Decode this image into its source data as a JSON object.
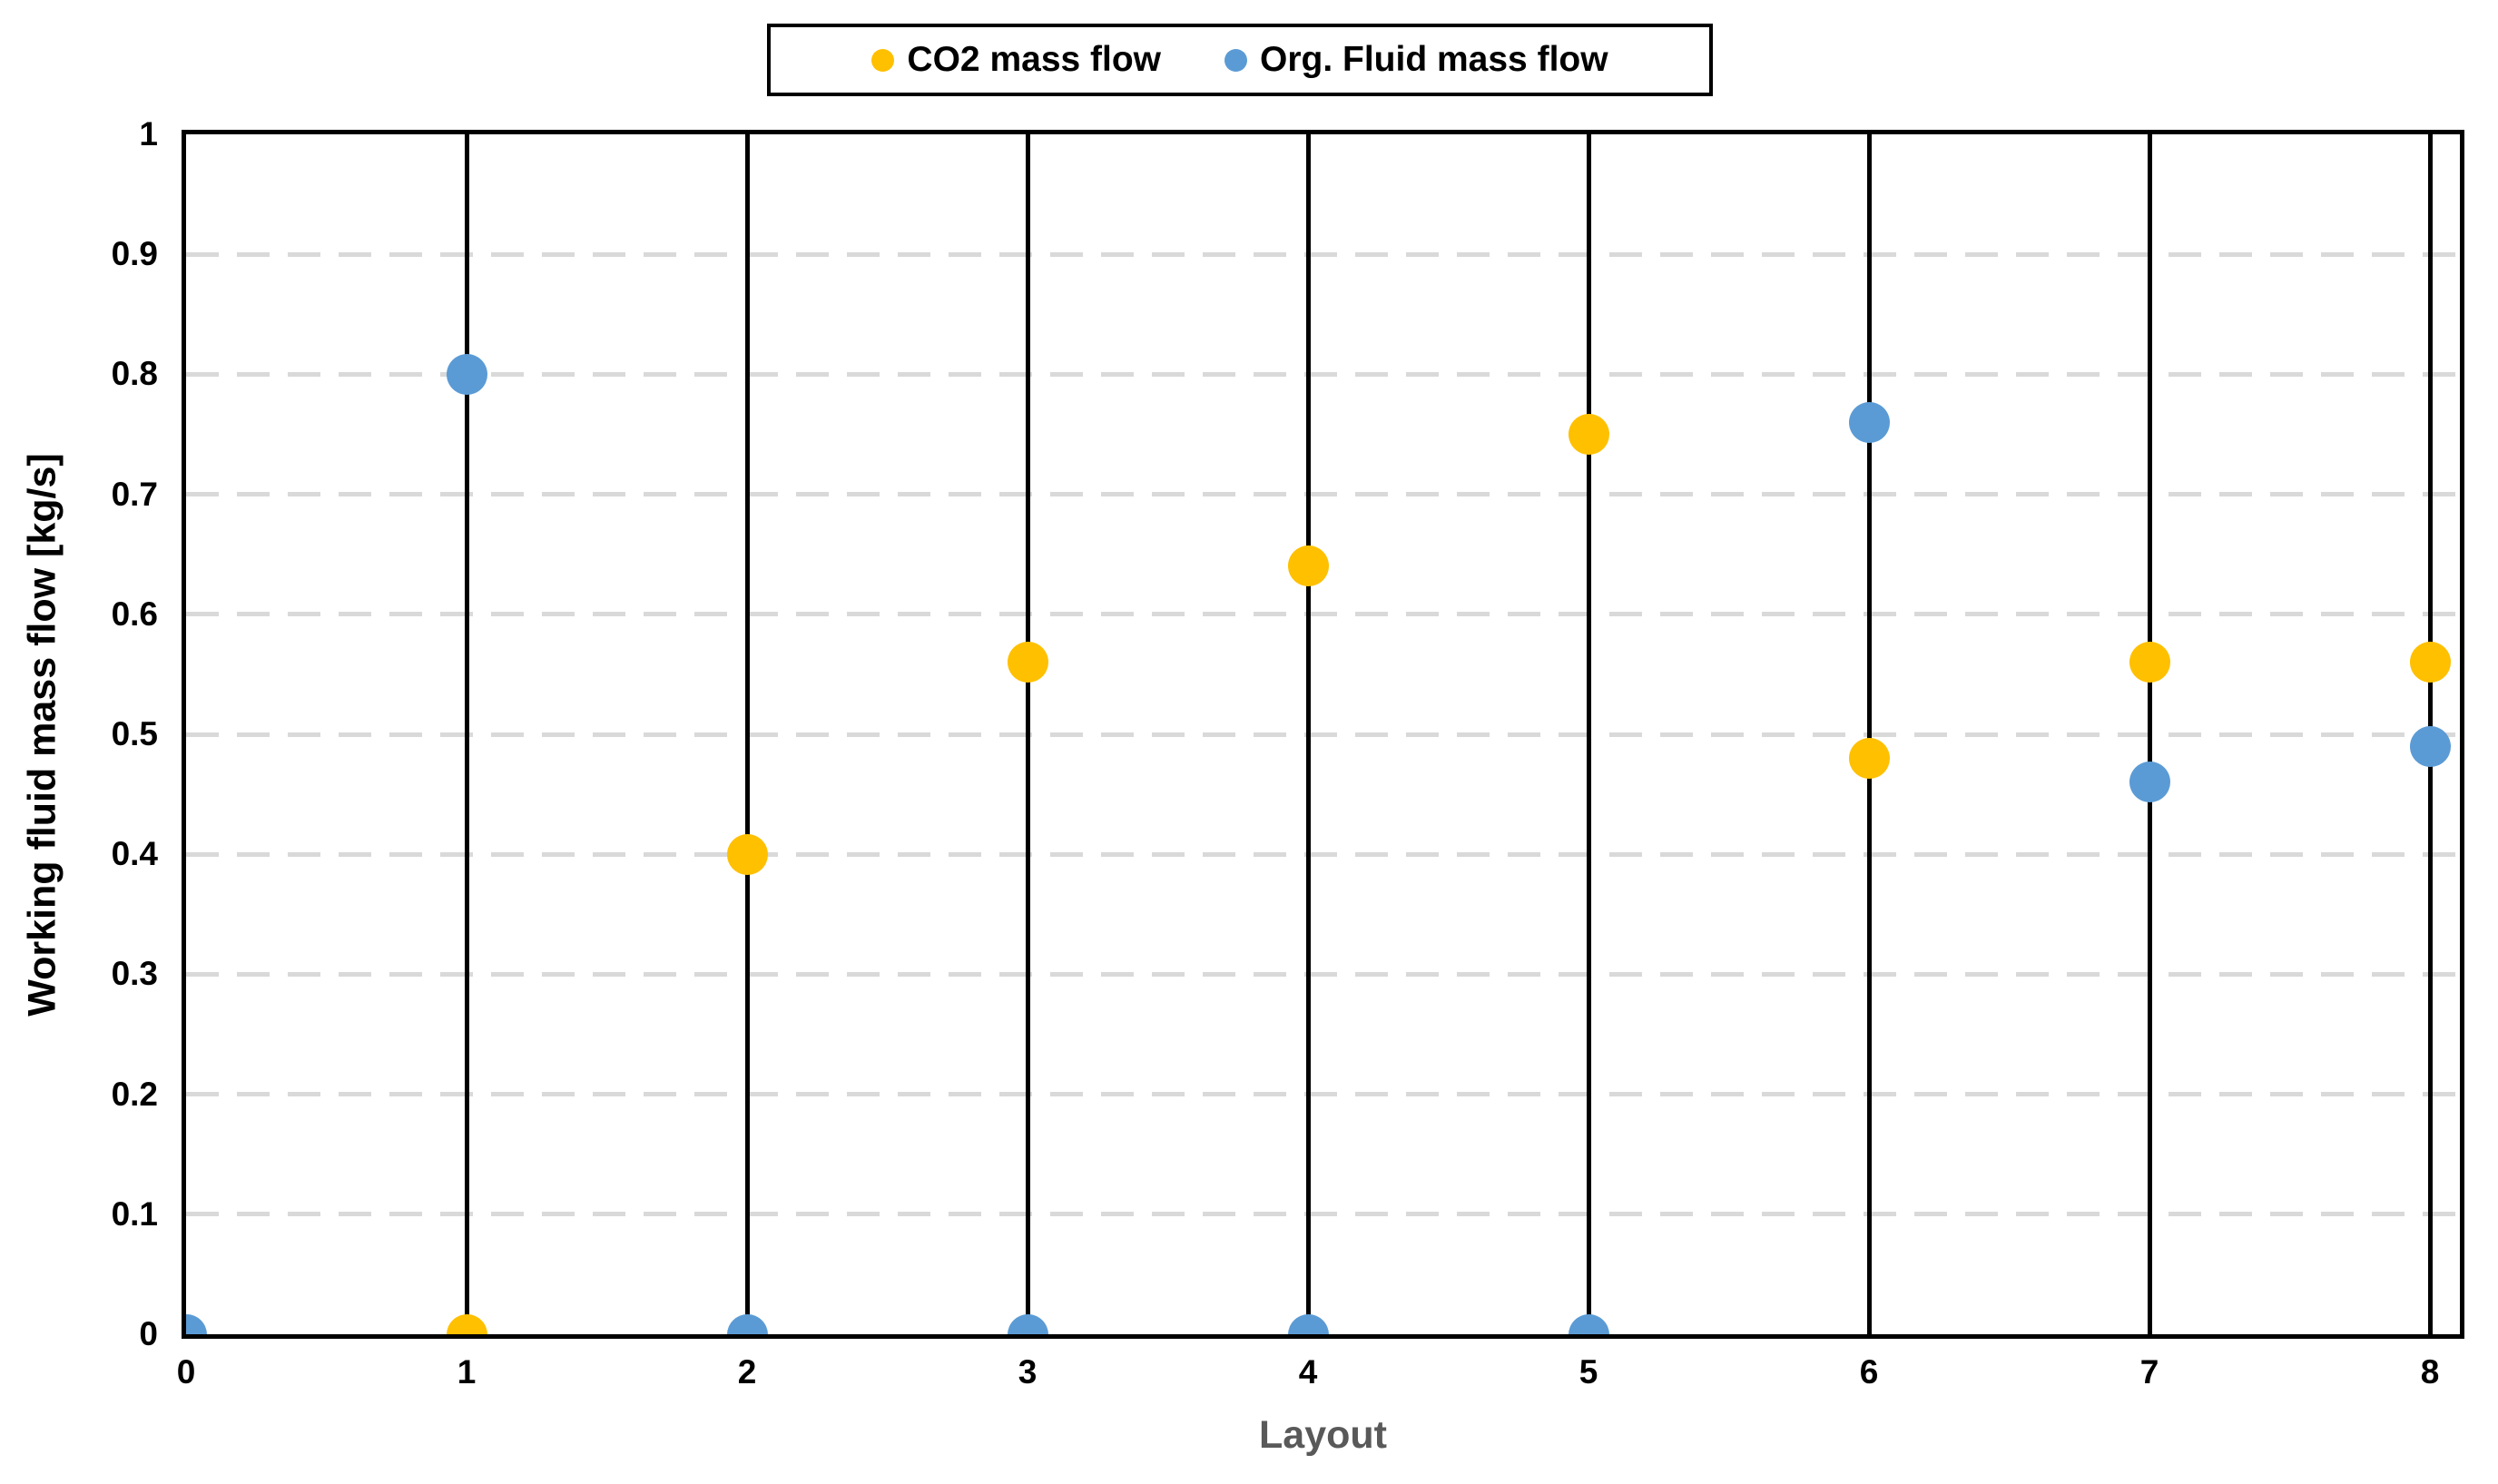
{
  "chart_data": {
    "type": "scatter",
    "xlabel": "Layout",
    "ylabel": "Working fluid mass flow [kg/s]",
    "xlim": [
      0,
      8.1
    ],
    "ylim": [
      0,
      1
    ],
    "x_ticks": [
      "0",
      "1",
      "2",
      "3",
      "4",
      "5",
      "6",
      "7",
      "8"
    ],
    "y_ticks": [
      "0",
      "0.1",
      "0.2",
      "0.3",
      "0.4",
      "0.5",
      "0.6",
      "0.7",
      "0.8",
      "0.9",
      "1"
    ],
    "grid": {
      "horizontal_style": "dashed",
      "horizontal_color": "#D9D9D9",
      "vertical_style": "solid",
      "vertical_color": "#000000"
    },
    "legend_position": "top-center",
    "series": [
      {
        "name": "CO2 mass flow",
        "color": "#FFC000",
        "points": [
          {
            "x": 1,
            "y": 0.0
          },
          {
            "x": 2,
            "y": 0.4
          },
          {
            "x": 3,
            "y": 0.56
          },
          {
            "x": 4,
            "y": 0.64
          },
          {
            "x": 5,
            "y": 0.75
          },
          {
            "x": 6,
            "y": 0.48
          },
          {
            "x": 7,
            "y": 0.56
          },
          {
            "x": 8,
            "y": 0.56
          }
        ]
      },
      {
        "name": "Org. Fluid mass flow",
        "color": "#5B9BD5",
        "points": [
          {
            "x": 0,
            "y": 0.0
          },
          {
            "x": 1,
            "y": 0.8
          },
          {
            "x": 2,
            "y": 0.0
          },
          {
            "x": 3,
            "y": 0.0
          },
          {
            "x": 4,
            "y": 0.0
          },
          {
            "x": 5,
            "y": 0.0
          },
          {
            "x": 6,
            "y": 0.76
          },
          {
            "x": 7,
            "y": 0.46
          },
          {
            "x": 8,
            "y": 0.49
          }
        ]
      }
    ]
  }
}
